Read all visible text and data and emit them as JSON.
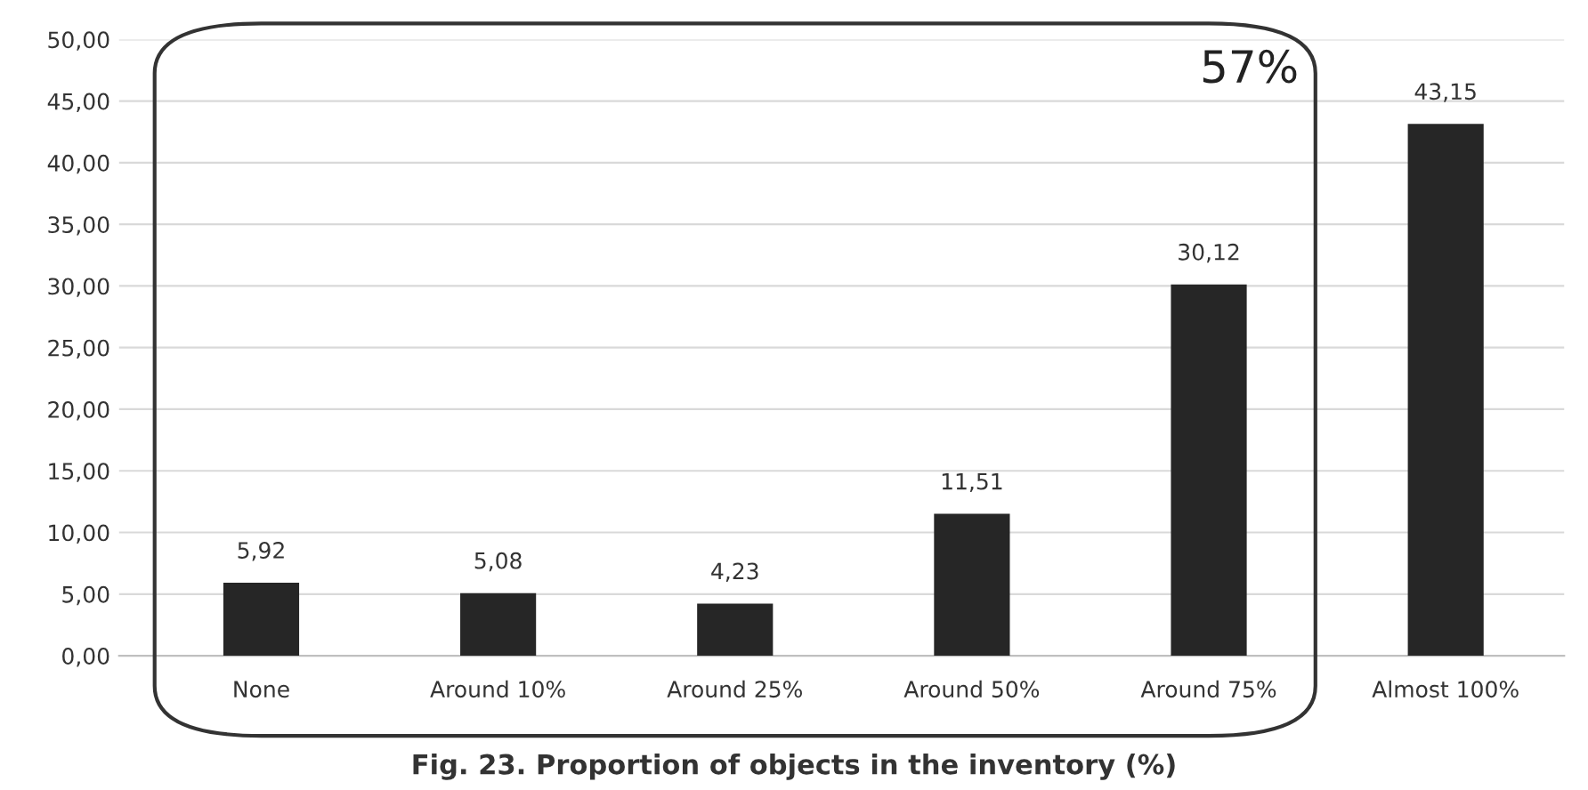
{
  "chart_data": {
    "type": "bar",
    "title": "Fig. 23. Proportion of objects in the inventory (%)",
    "categories": [
      "None",
      "Around 10%",
      "Around 25%",
      "Around 50%",
      "Around 75%",
      "Almost 100%"
    ],
    "values": [
      5.92,
      5.08,
      4.23,
      11.51,
      30.12,
      43.15
    ],
    "value_labels": [
      "5,92",
      "5,08",
      "4,23",
      "11,51",
      "30,12",
      "43,15"
    ],
    "color": "#262626",
    "ylim": [
      0,
      50
    ],
    "yticks": [
      {
        "value": 0,
        "label": "0,00"
      },
      {
        "value": 5,
        "label": "5,00"
      },
      {
        "value": 10,
        "label": "10,00"
      },
      {
        "value": 15,
        "label": "15,00"
      },
      {
        "value": 20,
        "label": "20,00"
      },
      {
        "value": 25,
        "label": "25,00"
      },
      {
        "value": 30,
        "label": "30,00"
      },
      {
        "value": 35,
        "label": "35,00"
      },
      {
        "value": 40,
        "label": "40,00"
      },
      {
        "value": 45,
        "label": "45,00"
      },
      {
        "value": 50,
        "label": "50,00"
      }
    ],
    "grid": "y",
    "annotations": [
      "57%"
    ]
  }
}
